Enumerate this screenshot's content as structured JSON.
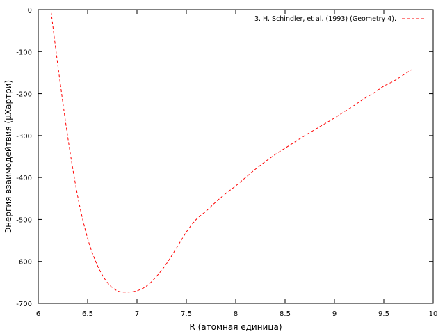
{
  "chart_data": {
    "type": "line",
    "title": "",
    "xlabel": "R (атомная единица)",
    "ylabel": "Энергия взаимодейтвия (μХартри)",
    "xlim": [
      6,
      10
    ],
    "ylim": [
      -700,
      0
    ],
    "x_ticks": [
      "6",
      "6.5",
      "7",
      "7.5",
      "8",
      "8.5",
      "9",
      "9.5",
      "10"
    ],
    "y_ticks": [
      "0",
      "-100",
      "-200",
      "-300",
      "-400",
      "-500",
      "-600",
      "-700"
    ],
    "x_tick_values": [
      6,
      6.5,
      7,
      7.5,
      8,
      8.5,
      9,
      9.5,
      10
    ],
    "y_tick_values": [
      0,
      -100,
      -200,
      -300,
      -400,
      -500,
      -600,
      -700
    ],
    "grid": false,
    "legend_position": "top-right",
    "series": [
      {
        "name": "3. H. Schindler, et al. (1993) (Geometry 4).",
        "color": "#ff0000",
        "line_style": "dashed",
        "x": [
          6.13,
          6.2,
          6.3,
          6.4,
          6.5,
          6.6,
          6.7,
          6.8,
          6.9,
          7.0,
          7.1,
          7.2,
          7.3,
          7.4,
          7.5,
          7.6,
          7.7,
          7.8,
          7.9,
          8.0,
          8.1,
          8.2,
          8.3,
          8.4,
          8.5,
          8.6,
          8.7,
          8.8,
          8.9,
          9.0,
          9.1,
          9.2,
          9.3,
          9.4,
          9.5,
          9.6,
          9.7,
          9.78
        ],
        "y": [
          -5,
          -135,
          -305,
          -445,
          -545,
          -610,
          -650,
          -670,
          -673,
          -670,
          -658,
          -635,
          -605,
          -568,
          -530,
          -500,
          -480,
          -458,
          -438,
          -420,
          -400,
          -380,
          -362,
          -345,
          -330,
          -315,
          -300,
          -286,
          -272,
          -258,
          -243,
          -228,
          -212,
          -198,
          -182,
          -170,
          -155,
          -143
        ]
      }
    ]
  }
}
